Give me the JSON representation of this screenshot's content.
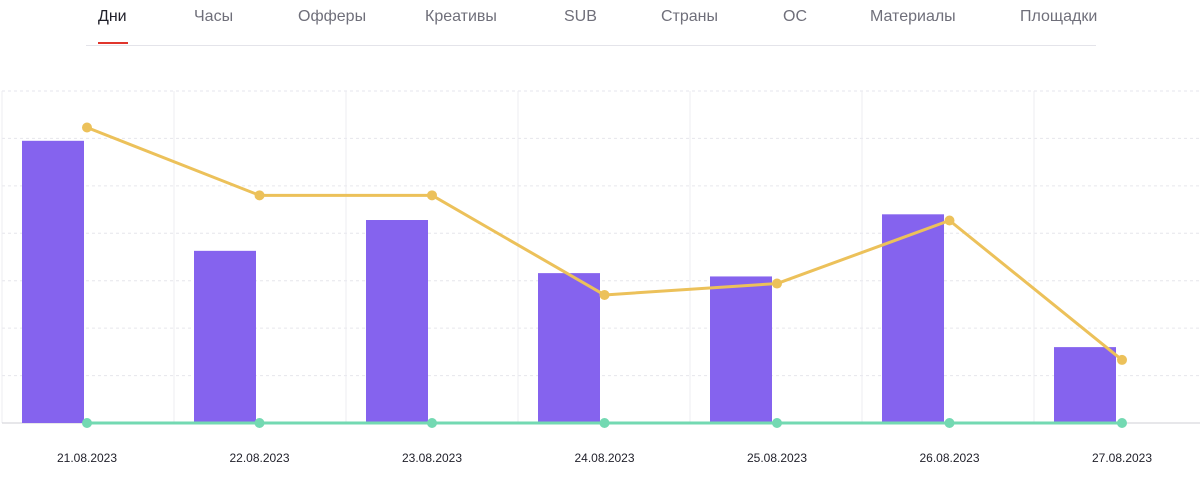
{
  "tabs": [
    {
      "label": "Дни",
      "active": true
    },
    {
      "label": "Часы",
      "active": false
    },
    {
      "label": "Офферы",
      "active": false
    },
    {
      "label": "Креативы",
      "active": false
    },
    {
      "label": "SUB",
      "active": false
    },
    {
      "label": "Страны",
      "active": false
    },
    {
      "label": "ОС",
      "active": false
    },
    {
      "label": "Материалы",
      "active": false
    },
    {
      "label": "Площадки",
      "active": false
    }
  ],
  "chart_data": {
    "type": "bar",
    "categories": [
      "21.08.2023",
      "22.08.2023",
      "23.08.2023",
      "24.08.2023",
      "25.08.2023",
      "26.08.2023",
      "27.08.2023"
    ],
    "grid": true,
    "legend": "none",
    "ylim": [
      0,
      7
    ],
    "series": [
      {
        "kind": "bar",
        "color": "#8563ee",
        "values": [
          5.95,
          3.63,
          4.28,
          3.16,
          3.09,
          4.4,
          1.6
        ]
      },
      {
        "kind": "line",
        "color": "#ecc15a",
        "values": [
          6.23,
          4.8,
          4.8,
          2.7,
          2.94,
          4.27,
          1.33
        ]
      },
      {
        "kind": "line",
        "color": "#73d9b2",
        "values": [
          0,
          0,
          0,
          0,
          0,
          0,
          0
        ]
      }
    ]
  }
}
